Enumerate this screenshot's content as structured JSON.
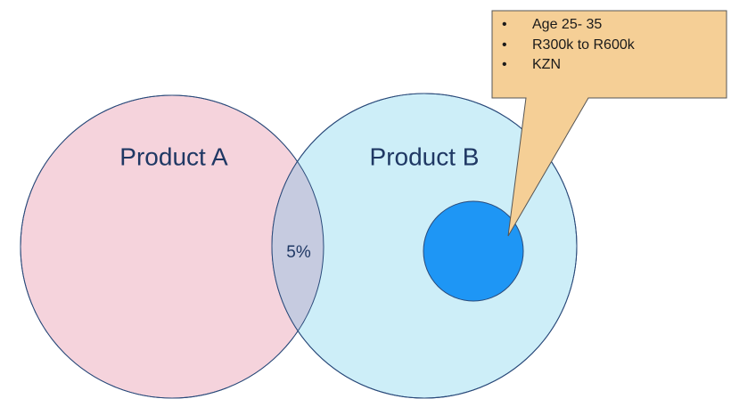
{
  "circles": [
    {
      "label": "Product A"
    },
    {
      "label": "Product B"
    }
  ],
  "overlap": {
    "label": "5%"
  },
  "callout": {
    "items": [
      "Age 25- 35",
      "R300k to R600k",
      "KZN"
    ]
  }
}
